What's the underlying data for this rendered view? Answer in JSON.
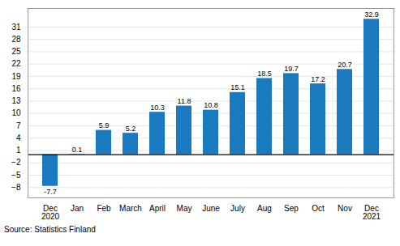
{
  "chart_data": {
    "type": "bar",
    "caption": "Source: Statistics Finland",
    "categories": [
      "Dec\n2020",
      "Jan",
      "Feb",
      "March",
      "April",
      "May",
      "June",
      "July",
      "Aug",
      "Sep",
      "Oct",
      "Nov",
      "Dec\n2021"
    ],
    "values": [
      -7.7,
      0.1,
      5.9,
      5.2,
      10.3,
      11.8,
      10.8,
      15.1,
      18.5,
      19.7,
      17.2,
      20.7,
      32.9
    ],
    "color": "#1a7abf",
    "ylim": [
      -10.5,
      35.5
    ],
    "yticks": [
      -8,
      -5,
      -2,
      1,
      4,
      7,
      10,
      13,
      16,
      19,
      22,
      25,
      28,
      31
    ],
    "grid": true,
    "data_labels": true
  }
}
